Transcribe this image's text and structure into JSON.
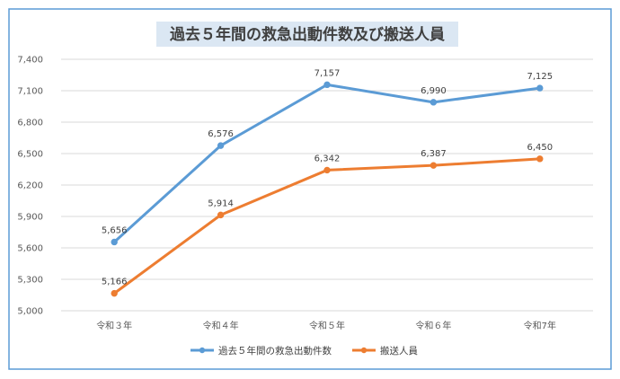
{
  "chart_data": {
    "type": "line",
    "title": "過去５年間の救急出動件数及び搬送人員",
    "categories": [
      "令和３年",
      "令和４年",
      "令和５年",
      "令和６年",
      "令和7年"
    ],
    "series": [
      {
        "name": "過去５年間の救急出動件数",
        "values": [
          5656,
          6576,
          7157,
          6990,
          7125
        ],
        "labels": [
          "5,656",
          "6,576",
          "7,157",
          "6,990",
          "7,125"
        ],
        "color": "#5b9bd5"
      },
      {
        "name": "搬送人員",
        "values": [
          5166,
          5914,
          6342,
          6387,
          6450
        ],
        "labels": [
          "5,166",
          "5,914",
          "6,342",
          "6,387",
          "6,450"
        ],
        "color": "#ed7d31"
      }
    ],
    "yticks": [
      5000,
      5300,
      5600,
      5900,
      6200,
      6500,
      6800,
      7100,
      7400
    ],
    "ytick_labels": [
      "5,000",
      "5,300",
      "5,600",
      "5,900",
      "6,200",
      "6,500",
      "6,800",
      "7,100",
      "7,400"
    ],
    "ylim": [
      5000,
      7400
    ],
    "xlabel": "",
    "ylabel": "",
    "grid": true,
    "legend_position": "bottom"
  }
}
